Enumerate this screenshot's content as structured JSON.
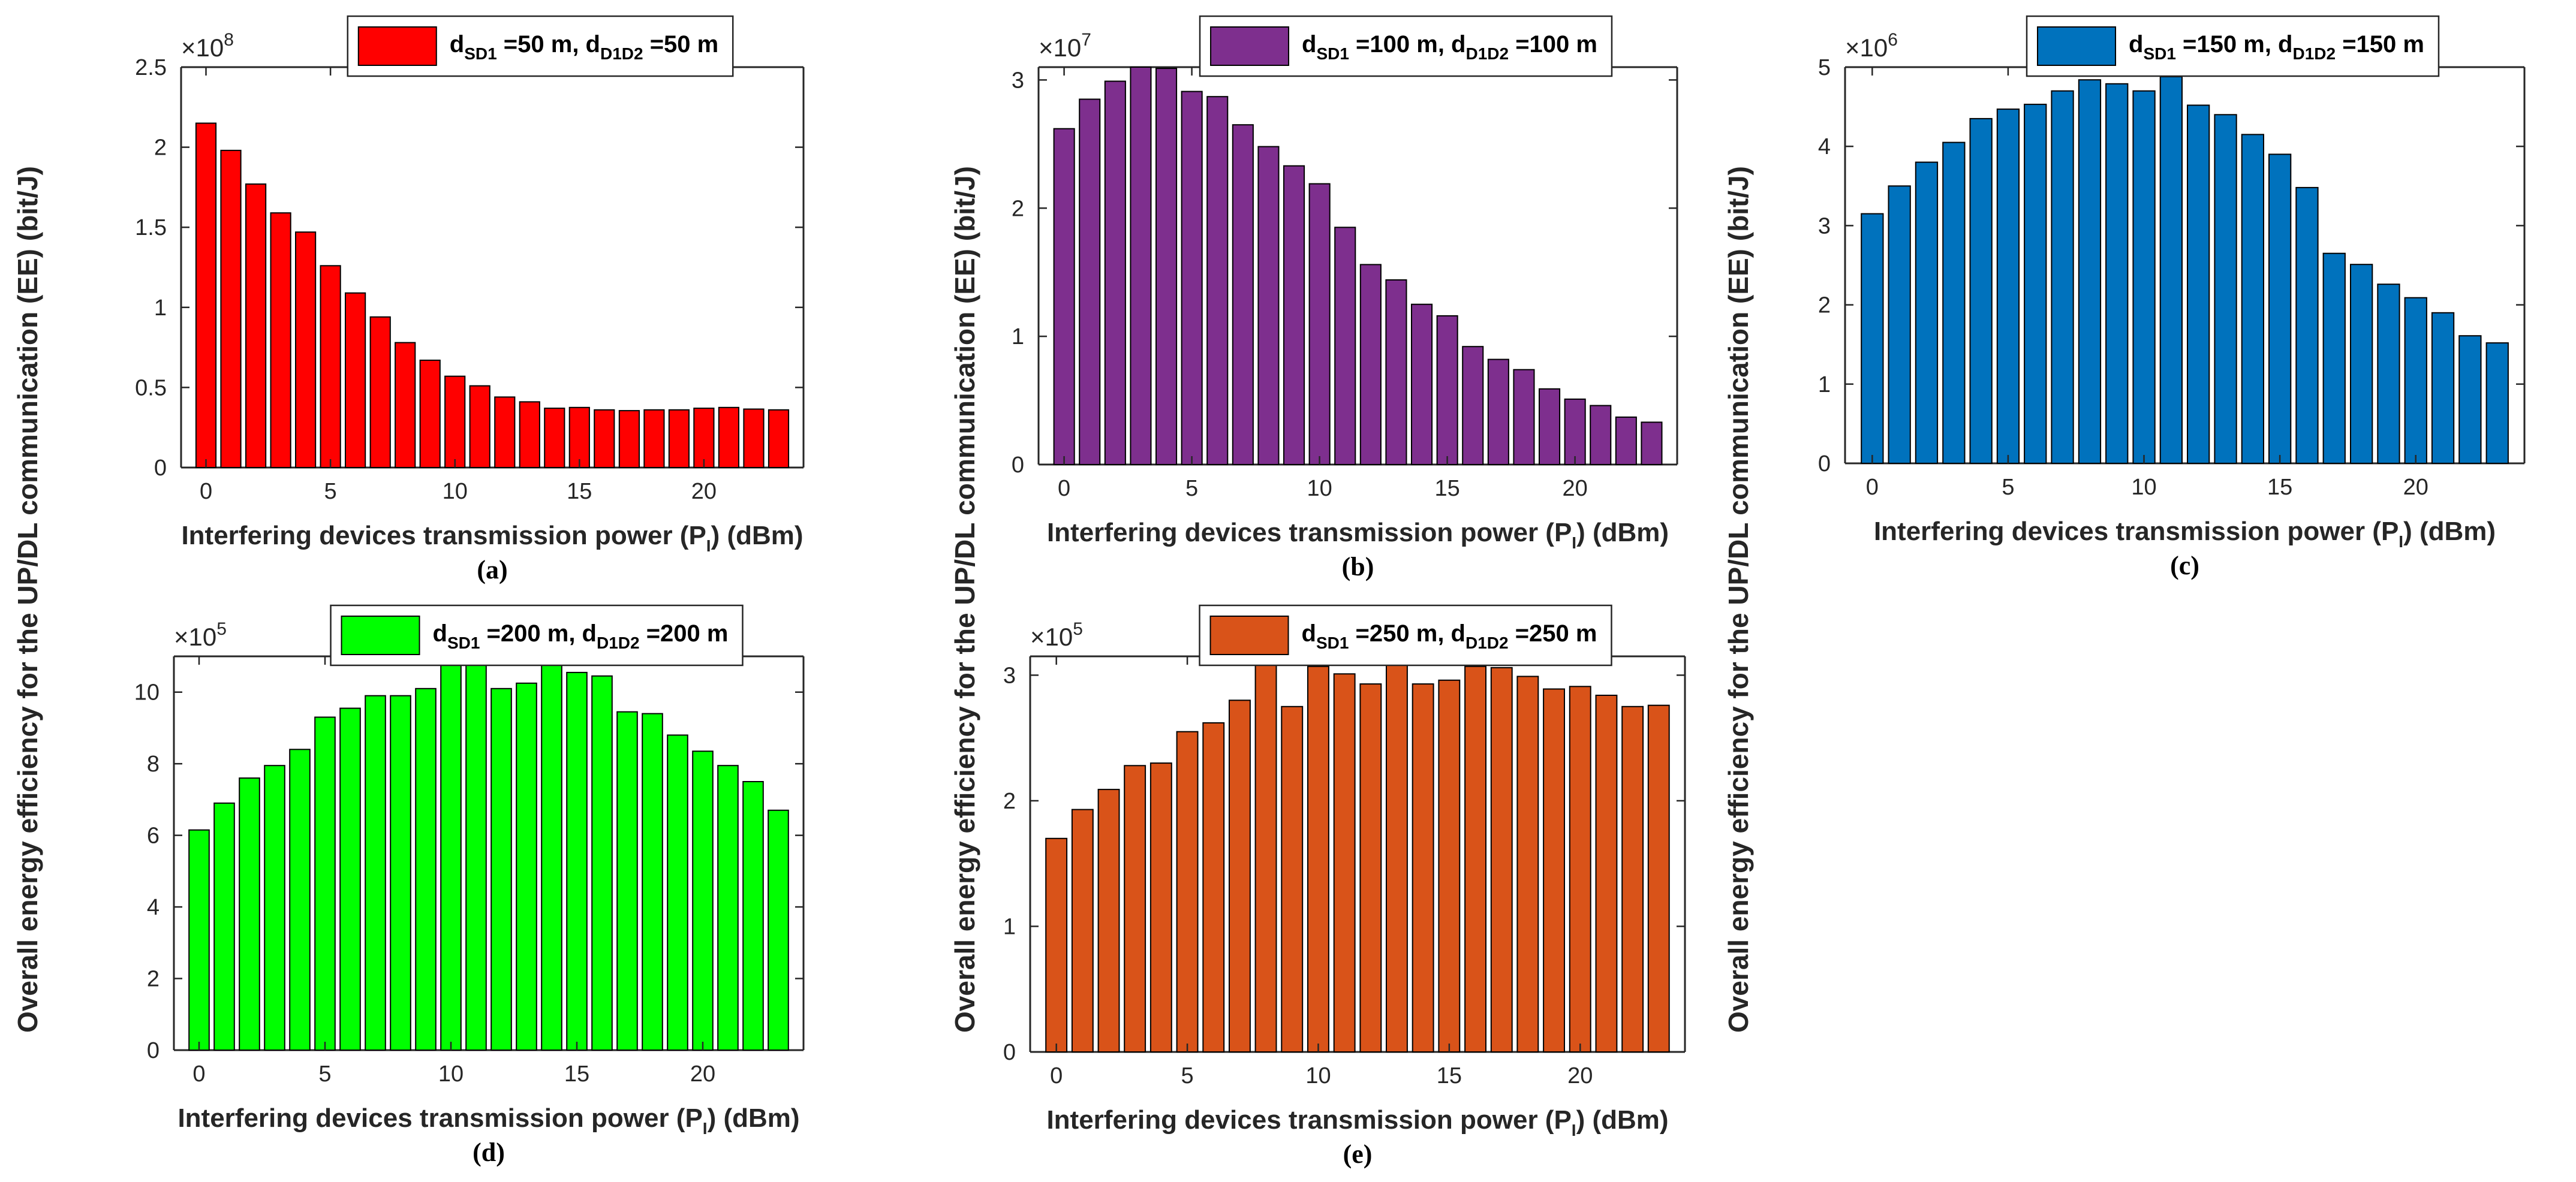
{
  "figure": {
    "ylabel": "Overall energy efficiency for the UP/DL communication (EE) (bit/J)"
  },
  "chart_data": [
    {
      "type": "bar",
      "panel_label": "(a)",
      "color": "#FF0000",
      "x": [
        0,
        1,
        2,
        3,
        4,
        5,
        6,
        7,
        8,
        9,
        10,
        11,
        12,
        13,
        14,
        15,
        16,
        17,
        18,
        19,
        20,
        21,
        22,
        23
      ],
      "values": [
        215000000.0,
        198000000.0,
        177000000.0,
        159000000.0,
        147000000.0,
        126000000.0,
        109000000.0,
        94000000.0,
        78000000.0,
        67000000.0,
        57000000.0,
        51000000.0,
        44000000.0,
        41000000.0,
        37000000.0,
        37500000.0,
        36000000.0,
        35500000.0,
        36000000.0,
        36000000.0,
        37000000.0,
        37500000.0,
        36500000.0,
        36000000.0
      ],
      "ylim": [
        0,
        250000000.0
      ],
      "xlim": [
        -1,
        24
      ],
      "yticks": [
        0,
        50000000.0,
        100000000.0,
        150000000.0,
        200000000.0,
        250000000.0
      ],
      "ytick_labels": [
        "0",
        "0.5",
        "1",
        "1.5",
        "2",
        "2.5"
      ],
      "xticks": [
        0,
        5,
        10,
        15,
        20
      ],
      "xtick_labels": [
        "0",
        "5",
        "10",
        "15",
        "20"
      ],
      "exponent_base": "×10",
      "exponent_power": "8",
      "xlabel_main": "Interfering devices transmission power (P",
      "xlabel_sub": "I",
      "xlabel_end": ") (dBm)",
      "legend": {
        "d": "d",
        "sub1": "SD1",
        "v1": " =50 m, d",
        "sub2": "D1D2",
        "v2": " =50 m"
      }
    },
    {
      "type": "bar",
      "panel_label": "(b)",
      "color": "#7E2F8E",
      "x": [
        0,
        1,
        2,
        3,
        4,
        5,
        6,
        7,
        8,
        9,
        10,
        11,
        12,
        13,
        14,
        15,
        16,
        17,
        18,
        19,
        20,
        21,
        22,
        23
      ],
      "values": [
        26200000.0,
        28500000.0,
        29900000.0,
        31000000.0,
        30900000.0,
        29100000.0,
        28700000.0,
        26500000.0,
        24800000.0,
        23300000.0,
        21900000.0,
        18500000.0,
        15600000.0,
        14400000.0,
        12500000.0,
        11600000.0,
        9200000.0,
        8200000.0,
        7400000.0,
        5900000.0,
        5100000.0,
        4600000.0,
        3700000.0,
        3300000.0
      ],
      "ylim": [
        0,
        31000000.0
      ],
      "xlim": [
        -1,
        24
      ],
      "yticks": [
        0,
        10000000.0,
        20000000.0,
        30000000.0
      ],
      "ytick_labels": [
        "0",
        "1",
        "2",
        "3"
      ],
      "xticks": [
        0,
        5,
        10,
        15,
        20
      ],
      "xtick_labels": [
        "0",
        "5",
        "10",
        "15",
        "20"
      ],
      "exponent_base": "×10",
      "exponent_power": "7",
      "xlabel_main": "Interfering devices transmission power (P",
      "xlabel_sub": "I",
      "xlabel_end": ") (dBm)",
      "legend": {
        "d": "d",
        "sub1": "SD1",
        "v1": " =100 m, d",
        "sub2": "D1D2",
        "v2": " =100 m"
      }
    },
    {
      "type": "bar",
      "panel_label": "(c)",
      "color": "#0072BD",
      "x": [
        0,
        1,
        2,
        3,
        4,
        5,
        6,
        7,
        8,
        9,
        10,
        11,
        12,
        13,
        14,
        15,
        16,
        17,
        18,
        19,
        20,
        21,
        22,
        23
      ],
      "values": [
        3150000.0,
        3500000.0,
        3800000.0,
        4050000.0,
        4350000.0,
        4470000.0,
        4530000.0,
        4700000.0,
        4840000.0,
        4790000.0,
        4700000.0,
        4880000.0,
        4520000.0,
        4400000.0,
        4150000.0,
        3900000.0,
        3480000.0,
        2650000.0,
        2510000.0,
        2260000.0,
        2090000.0,
        1900000.0,
        1610000.0,
        1520000.0
      ],
      "ylim": [
        0,
        5000000.0
      ],
      "xlim": [
        -1,
        24
      ],
      "yticks": [
        0,
        1000000.0,
        2000000.0,
        3000000.0,
        4000000.0,
        5000000.0
      ],
      "ytick_labels": [
        "0",
        "1",
        "2",
        "3",
        "4",
        "5"
      ],
      "xticks": [
        0,
        5,
        10,
        15,
        20
      ],
      "xtick_labels": [
        "0",
        "5",
        "10",
        "15",
        "20"
      ],
      "exponent_base": "×10",
      "exponent_power": "6",
      "xlabel_main": "Interfering devices transmission power (P",
      "xlabel_sub": "I",
      "xlabel_end": ") (dBm)",
      "legend": {
        "d": "d",
        "sub1": "SD1",
        "v1": " =150 m, d",
        "sub2": "D1D2",
        "v2": " =150 m"
      }
    },
    {
      "type": "bar",
      "panel_label": "(d)",
      "color": "#00FF00",
      "x": [
        0,
        1,
        2,
        3,
        4,
        5,
        6,
        7,
        8,
        9,
        10,
        11,
        12,
        13,
        14,
        15,
        16,
        17,
        18,
        19,
        20,
        21,
        22,
        23
      ],
      "values": [
        615000.0,
        690000.0,
        760000.0,
        795000.0,
        840000.0,
        930000.0,
        955000.0,
        990000.0,
        990000.0,
        1010000.0,
        1080000.0,
        1100000.0,
        1010000.0,
        1025000.0,
        1095000.0,
        1055000.0,
        1045000.0,
        945000.0,
        940000.0,
        880000.0,
        835000.0,
        795000.0,
        750000.0,
        670000.0
      ],
      "ylim": [
        0,
        1100000.0
      ],
      "xlim": [
        -1,
        24
      ],
      "yticks": [
        0,
        200000.0,
        400000.0,
        600000.0,
        800000.0,
        1000000.0
      ],
      "ytick_labels": [
        "0",
        "2",
        "4",
        "6",
        "8",
        "10"
      ],
      "xticks": [
        0,
        5,
        10,
        15,
        20
      ],
      "xtick_labels": [
        "0",
        "5",
        "10",
        "15",
        "20"
      ],
      "exponent_base": "×10",
      "exponent_power": "5",
      "xlabel_main": "Interfering devices transmission power (P",
      "xlabel_sub": "I",
      "xlabel_end": ") (dBm)",
      "legend": {
        "d": "d",
        "sub1": "SD1",
        "v1": " =200 m, d",
        "sub2": "D1D2",
        "v2": " =200 m"
      }
    },
    {
      "type": "bar",
      "panel_label": "(e)",
      "color": "#D95319",
      "x": [
        0,
        1,
        2,
        3,
        4,
        5,
        6,
        7,
        8,
        9,
        10,
        11,
        12,
        13,
        14,
        15,
        16,
        17,
        18,
        19,
        20,
        21,
        22,
        23
      ],
      "values": [
        170000.0,
        193000.0,
        209000.0,
        228000.0,
        230000.0,
        255000.0,
        262000.0,
        280000.0,
        311000.0,
        275000.0,
        307000.0,
        301000.0,
        293000.0,
        315000.0,
        293000.0,
        296000.0,
        307000.0,
        306000.0,
        299000.0,
        289000.0,
        291000.0,
        284000.0,
        275000.0,
        276000.0
      ],
      "ylim": [
        0,
        315000.0
      ],
      "xlim": [
        -1,
        24
      ],
      "yticks": [
        0,
        100000.0,
        200000.0,
        300000.0
      ],
      "ytick_labels": [
        "0",
        "1",
        "2",
        "3"
      ],
      "xticks": [
        0,
        5,
        10,
        15,
        20
      ],
      "xtick_labels": [
        "0",
        "5",
        "10",
        "15",
        "20"
      ],
      "exponent_base": "×10",
      "exponent_power": "5",
      "xlabel_main": "Interfering devices transmission power (P",
      "xlabel_sub": "I",
      "xlabel_end": ") (dBm)",
      "legend": {
        "d": "d",
        "sub1": "SD1",
        "v1": " =250 m, d",
        "sub2": "D1D2",
        "v2": " =250 m"
      }
    }
  ]
}
